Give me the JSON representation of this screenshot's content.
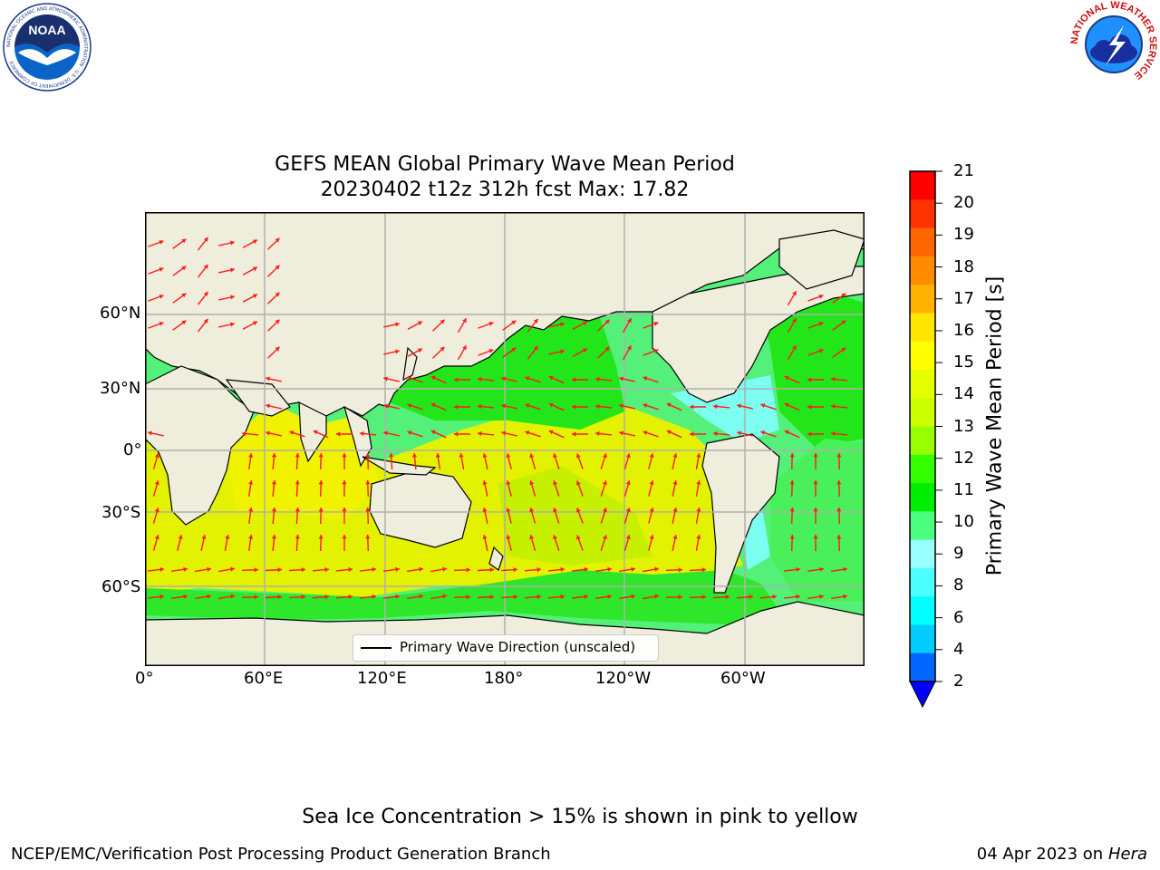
{
  "title_line1": "GEFS MEAN Global Primary Wave Mean Period",
  "title_line2": "20230402 t12z 312h fcst   Max: 17.82",
  "map": {
    "lat_labels": [
      "60°N",
      "30°N",
      "0°",
      "30°S",
      "60°S"
    ],
    "lon_labels": [
      "0°",
      "60°E",
      "120°E",
      "180°",
      "120°W",
      "60°W"
    ],
    "legend_label": "Primary Wave Direction (unscaled)",
    "colors": {
      "land": "#efeddc",
      "ocean_short": "#33ffff",
      "ocean_mid": "#55f07a",
      "ocean_green": "#22e61a",
      "ocean_long": "#d8f200",
      "ocean_yellow": "#f2f200",
      "arrow": "#ff1a1a",
      "grid": "#b0b0b0"
    }
  },
  "colorbar": {
    "label": "Primary Wave Mean Period [s]",
    "ticks": [
      "21",
      "20",
      "19",
      "18",
      "17",
      "16",
      "15",
      "14",
      "13",
      "12",
      "11",
      "10",
      "9",
      "8",
      "6",
      "4",
      "2"
    ],
    "colors": [
      "#ff0000",
      "#ff3300",
      "#ff6600",
      "#ff8c00",
      "#ffb300",
      "#ffe600",
      "#ffff00",
      "#e6ff00",
      "#ccff00",
      "#99ff00",
      "#33ff00",
      "#00ee00",
      "#4dff80",
      "#99ffff",
      "#4dffff",
      "#00ffff",
      "#00ccff",
      "#0066ff"
    ],
    "extend_color": "#0000ff"
  },
  "footer": {
    "note": "Sea Ice Concentration > 15% is shown in pink to yellow",
    "left": "NCEP/EMC/Verification Post Processing Product Generation Branch",
    "date": "04 Apr 2023 on ",
    "host": "Hera"
  },
  "logos": {
    "noaa_text": "NOAA",
    "noaa_ring": "NATIONAL OCEANIC AND ATMOSPHERIC ADMINISTRATION · U.S. DEPARTMENT OF COMMERCE",
    "nws_ring": "NATIONAL WEATHER SERVICE"
  }
}
